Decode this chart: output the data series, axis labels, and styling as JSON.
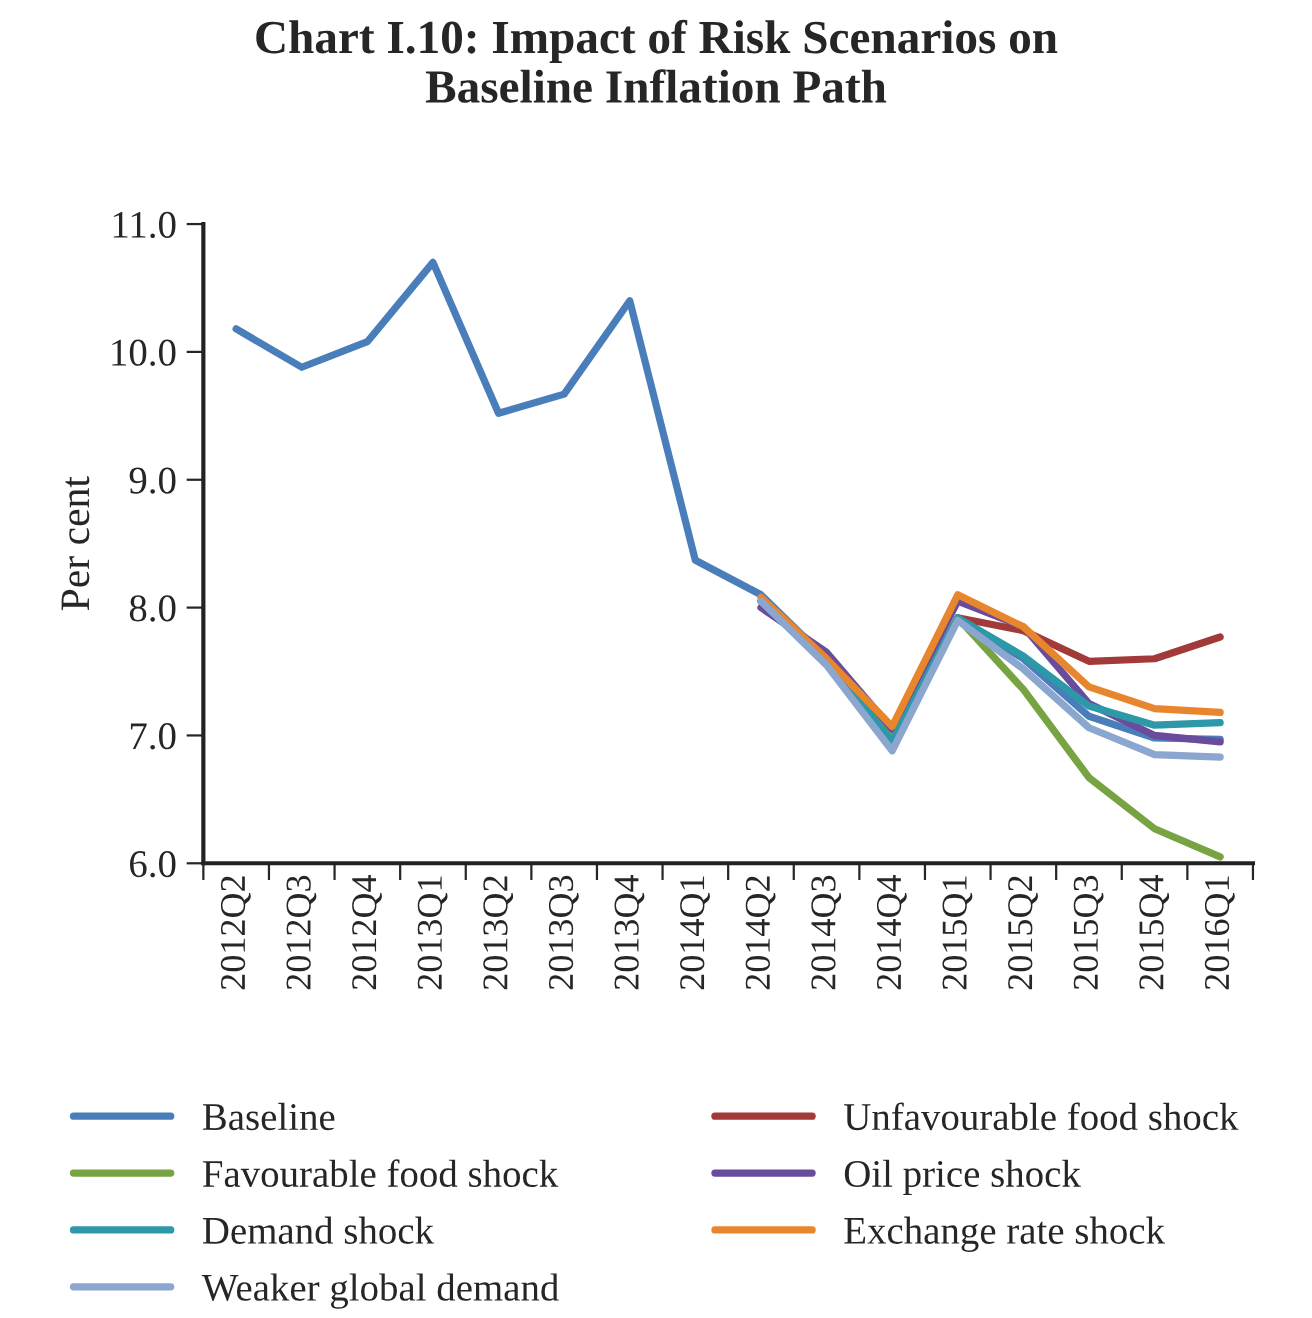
{
  "chart_data": {
    "type": "line",
    "title": "Chart I.10: Impact of Risk Scenarios on\nBaseline Inflation Path",
    "ylabel": "Per cent",
    "categories": [
      "2012Q2",
      "2012Q3",
      "2012Q4",
      "2013Q1",
      "2013Q2",
      "2013Q3",
      "2013Q4",
      "2014Q1",
      "2014Q2",
      "2014Q3",
      "2014Q4",
      "2015Q1",
      "2015Q2",
      "2015Q3",
      "2015Q4",
      "2016Q1"
    ],
    "ylim": [
      6.0,
      11.0
    ],
    "yticks": [
      {
        "value": 6,
        "label": "6.0"
      },
      {
        "value": 7,
        "label": "7.0"
      },
      {
        "value": 8,
        "label": "8.0"
      },
      {
        "value": 9,
        "label": "9.0"
      },
      {
        "value": 10,
        "label": "10.0"
      },
      {
        "value": 11,
        "label": "11.0"
      }
    ],
    "legend": "bottom",
    "grid": false,
    "series": [
      {
        "name": "Baseline",
        "color": "#4a7ebb",
        "values": [
          10.18,
          9.88,
          10.08,
          10.7,
          9.52,
          9.67,
          10.4,
          8.37,
          8.1,
          7.6,
          6.95,
          7.92,
          7.6,
          7.15,
          6.98,
          6.97
        ]
      },
      {
        "name": "Unfavourable food shock",
        "color": "#a33a3a",
        "values": [
          null,
          null,
          null,
          null,
          null,
          null,
          null,
          null,
          null,
          null,
          null,
          7.92,
          7.82,
          7.58,
          7.6,
          7.77
        ]
      },
      {
        "name": "Favourable food shock",
        "color": "#77a342",
        "values": [
          null,
          null,
          null,
          null,
          null,
          null,
          null,
          null,
          8.05,
          7.6,
          6.98,
          7.92,
          7.36,
          6.67,
          6.27,
          6.05
        ]
      },
      {
        "name": "Oil price shock",
        "color": "#6a4c9c",
        "values": [
          null,
          null,
          null,
          null,
          null,
          null,
          null,
          null,
          8.0,
          7.65,
          7.05,
          8.05,
          7.85,
          7.25,
          7.0,
          6.95
        ]
      },
      {
        "name": "Demand shock",
        "color": "#2c98a8",
        "values": [
          null,
          null,
          null,
          null,
          null,
          null,
          null,
          null,
          8.05,
          7.58,
          6.95,
          7.92,
          7.62,
          7.23,
          7.08,
          7.1
        ]
      },
      {
        "name": "Exchange rate shock",
        "color": "#e8862e",
        "values": [
          null,
          null,
          null,
          null,
          null,
          null,
          null,
          null,
          8.08,
          7.6,
          7.07,
          8.1,
          7.85,
          7.38,
          7.21,
          7.18
        ]
      },
      {
        "name": "Weaker global demand",
        "color": "#8ba6cf",
        "values": [
          null,
          null,
          null,
          null,
          null,
          null,
          null,
          null,
          8.05,
          7.55,
          6.88,
          7.9,
          7.52,
          7.06,
          6.85,
          6.83
        ]
      }
    ]
  }
}
